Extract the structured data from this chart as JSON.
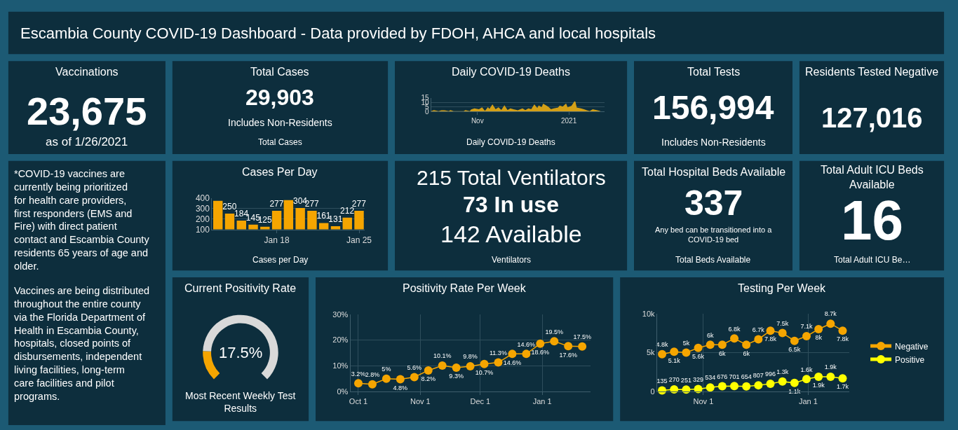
{
  "chart_data": [
    {
      "type": "other",
      "title": "Escambia County COVID-19 Dashboard - Data provided by FDOH, AHCA and local hospitals"
    },
    {
      "type": "other",
      "title": "Vaccinations",
      "annotations": [
        "23,675",
        "as of 1/26/2021"
      ]
    },
    {
      "type": "other",
      "title": "Total Cases",
      "annotations": [
        "29,903",
        "Includes Non-Residents",
        "Total Cases"
      ]
    },
    {
      "type": "area",
      "title": "Daily COVID-19 Deaths",
      "annotations": [
        "Daily COVID-19 Deaths"
      ],
      "color": "#d4a017",
      "x": [
        "2020-10-01",
        "2020-10-03",
        "2020-10-06",
        "2020-10-08",
        "2020-10-10",
        "2020-10-13",
        "2020-10-14",
        "2020-10-16",
        "2020-10-23",
        "2020-10-24",
        "2020-10-27",
        "2020-10-28",
        "2020-10-30",
        "2020-11-02",
        "2020-11-04",
        "2020-11-06",
        "2020-11-08",
        "2020-11-09",
        "2020-11-11",
        "2020-11-13",
        "2020-11-15",
        "2020-11-17",
        "2020-11-19",
        "2020-11-21",
        "2020-11-23",
        "2020-11-25",
        "2020-11-28",
        "2020-12-01",
        "2020-12-03",
        "2020-12-05",
        "2020-12-07",
        "2020-12-09",
        "2020-12-11",
        "2020-12-12",
        "2020-12-14",
        "2020-12-15",
        "2020-12-18",
        "2020-12-20",
        "2020-12-22",
        "2020-12-25",
        "2020-12-26",
        "2020-12-28",
        "2020-12-30",
        "2020-12-31",
        "2021-01-03",
        "2021-01-05",
        "2021-01-06",
        "2021-01-09",
        "2021-01-11",
        "2021-01-13",
        "2021-01-15",
        "2021-01-17",
        "2021-01-20",
        "2021-01-22"
      ],
      "values": [
        0,
        1,
        0,
        1,
        1,
        0,
        1,
        0,
        0,
        1,
        0,
        2,
        3,
        2,
        4,
        0,
        4,
        2,
        7,
        2,
        4,
        1,
        6,
        1,
        3,
        2,
        1,
        3,
        1,
        3,
        2,
        7,
        3,
        6,
        4,
        8,
        5,
        2,
        3,
        4,
        6,
        5,
        8,
        4,
        6,
        11,
        4,
        3,
        2,
        1,
        0,
        2,
        1,
        0
      ],
      "xlim": [
        "2020-10-01",
        "2021-01-25"
      ],
      "xticks": [
        {
          "value": "2020-11-01",
          "label": "Nov"
        },
        {
          "value": "2021-01-01",
          "label": "2021"
        }
      ],
      "ylim": [
        0,
        15
      ],
      "yticks": [
        0,
        5,
        10,
        15
      ],
      "grid": "y"
    },
    {
      "type": "other",
      "title": "Total Tests",
      "annotations": [
        "156,994",
        "Includes Non-Residents"
      ]
    },
    {
      "type": "other",
      "title": "Residents Tested Negative",
      "annotations": [
        "127,016"
      ]
    },
    {
      "type": "other",
      "annotations": [
        "*COVID-19 vaccines are currently being prioritized for health care providers, first responders (EMS and Fire) with direct patient contact and Escambia County residents 65 years of age and older.",
        "Vaccines are being distributed throughout the entire county via the Florida Department of Health in Escambia County, hospitals, closed points of disbursements, independent living facilities, long-term care facilities and pilot programs."
      ]
    },
    {
      "type": "bar",
      "title": "Cases Per Day",
      "annotations": [
        "Cases per Day"
      ],
      "color": "#f5a500",
      "x": [
        "2021-01-13",
        "2021-01-14",
        "2021-01-15",
        "2021-01-16",
        "2021-01-17",
        "2021-01-18",
        "2021-01-19",
        "2021-01-20",
        "2021-01-21",
        "2021-01-22",
        "2021-01-23",
        "2021-01-24",
        "2021-01-25"
      ],
      "values": [
        372,
        250,
        184,
        145,
        125,
        277,
        378,
        304,
        277,
        161,
        131,
        212,
        277
      ],
      "value_labels": [
        null,
        "250",
        "184",
        "145",
        "125",
        "277",
        null,
        "304",
        "277",
        "161",
        "131",
        "212",
        "277"
      ],
      "xlim": [
        "2021-01-12T12:00",
        "2021-01-25T12:00"
      ],
      "xticks": [
        {
          "value": "2021-01-18",
          "label": "Jan 18"
        },
        {
          "value": "2021-01-25",
          "label": "Jan 25"
        }
      ],
      "ylim": [
        100,
        400
      ],
      "yticks": [
        100,
        200,
        300,
        400
      ],
      "grid": "y"
    },
    {
      "type": "other",
      "title": "215 Total Ventilators",
      "annotations": [
        "73 In use",
        "142 Available",
        "Ventilators"
      ]
    },
    {
      "type": "other",
      "title": "Total Hospital Beds Available",
      "annotations": [
        "337",
        "Any bed can be transitioned into a COVID-19 bed",
        "Total Beds Available"
      ]
    },
    {
      "type": "other",
      "title": "Total Adult ICU Beds Available",
      "annotations": [
        "16",
        "Total Adult ICU Be…"
      ]
    },
    {
      "type": "donut",
      "title": "Current Positivity Rate",
      "annotations": [
        "17.5%",
        "Most Recent Weekly Test Results"
      ],
      "categories": [
        null,
        null
      ],
      "values": [
        17.5,
        82.5
      ],
      "colors": [
        "#f5a500",
        "#d9d9d9"
      ]
    },
    {
      "type": "line",
      "title": "Positivity Rate Per Week",
      "color": "#f5a500",
      "marker": "circle",
      "x": [
        "2020-10-01",
        "2020-10-08",
        "2020-10-15",
        "2020-10-22",
        "2020-10-29",
        "2020-11-05",
        "2020-11-12",
        "2020-11-19",
        "2020-11-26",
        "2020-12-03",
        "2020-12-10",
        "2020-12-17",
        "2020-12-24",
        "2020-12-31",
        "2021-01-07",
        "2021-01-14",
        "2021-01-21"
      ],
      "values": [
        3.2,
        2.8,
        5,
        4.8,
        5.6,
        8.2,
        10.1,
        9.3,
        9.8,
        10.7,
        11.3,
        14.6,
        14.6,
        18.6,
        19.5,
        17.6,
        17.5
      ],
      "value_labels": [
        "3.2%",
        "2.8%",
        "5%",
        "4.8%",
        "5.6%",
        "8.2%",
        "10.1%",
        "9.3%",
        "9.8%",
        "10.7%",
        "11.3%",
        "14.6%",
        "14.6%",
        "18.6%",
        "19.5%",
        "17.6%",
        "17.5%"
      ],
      "xlim": [
        "2020-09-27",
        "2021-01-25"
      ],
      "xticks": [
        {
          "value": "2020-10-01",
          "label": "Oct 1"
        },
        {
          "value": "2020-11-01",
          "label": "Nov 1"
        },
        {
          "value": "2020-12-01",
          "label": "Dec 1"
        },
        {
          "value": "2021-01-01",
          "label": "Jan 1"
        }
      ],
      "ylim": [
        0,
        30
      ],
      "yticks": [
        {
          "value": 0,
          "label": "0%"
        },
        {
          "value": 10,
          "label": "10%"
        },
        {
          "value": 20,
          "label": "20%"
        },
        {
          "value": 30,
          "label": "30%"
        }
      ],
      "grid": true
    },
    {
      "type": "line",
      "title": "Testing Per Week",
      "marker": "circle",
      "legend": "right",
      "x": [
        "2020-10-08",
        "2020-10-15",
        "2020-10-22",
        "2020-10-29",
        "2020-11-05",
        "2020-11-12",
        "2020-11-19",
        "2020-11-26",
        "2020-12-03",
        "2020-12-10",
        "2020-12-17",
        "2020-12-24",
        "2020-12-31",
        "2021-01-07",
        "2021-01-14",
        "2021-01-21"
      ],
      "series": [
        {
          "name": "Negative",
          "color": "#f5a500",
          "values": [
            4800,
            5100,
            5000,
            5600,
            6000,
            6000,
            6800,
            6000,
            6700,
            7800,
            7500,
            6500,
            7100,
            8000,
            8700,
            7800
          ],
          "value_labels": [
            "4.8k",
            "5.1k",
            "5k",
            "5.6k",
            "6k",
            "6k",
            "6.8k",
            "6k",
            "6.7k",
            "7.8k",
            "7.5k",
            "6.5k",
            "7.1k",
            "8k",
            "8.7k",
            "7.8k"
          ]
        },
        {
          "name": "Positive",
          "color": "#ffff00",
          "values": [
            135,
            270,
            251,
            329,
            534,
            676,
            701,
            654,
            807,
            996,
            1300,
            1100,
            1600,
            1900,
            1900,
            1700
          ],
          "value_labels": [
            "135",
            "270",
            "251",
            "329",
            "534",
            "676",
            "701",
            "654",
            "807",
            "996",
            "1.3k",
            "1.1k",
            "1.6k",
            "1.9k",
            "1.9k",
            "1.7k"
          ]
        }
      ],
      "xlim": [
        "2020-10-05",
        "2021-01-25"
      ],
      "xticks": [
        {
          "value": "2020-11-01",
          "label": "Nov 1"
        },
        {
          "value": "2021-01-01",
          "label": "Jan 1"
        }
      ],
      "ylim": [
        0,
        10000
      ],
      "yticks": [
        {
          "value": 0,
          "label": "0"
        },
        {
          "value": 5000,
          "label": "5k"
        },
        {
          "value": 10000,
          "label": "10k"
        }
      ],
      "grid": true
    }
  ]
}
